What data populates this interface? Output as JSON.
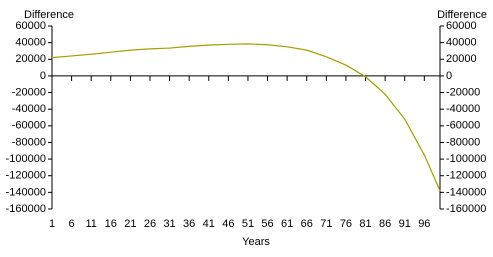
{
  "chart_data": {
    "type": "line",
    "y_label": "Difference",
    "y2_label": "Difference",
    "x_label": "Years",
    "x": [
      1,
      6,
      11,
      16,
      21,
      26,
      31,
      36,
      41,
      46,
      51,
      56,
      61,
      66,
      71,
      76,
      81,
      86,
      91,
      96,
      100
    ],
    "series": [
      {
        "color": "#a3a000",
        "values": [
          22000,
          24000,
          26000,
          28500,
          31000,
          32500,
          33500,
          35500,
          37000,
          38000,
          38500,
          37500,
          35000,
          31000,
          23000,
          13000,
          -1000,
          -22000,
          -52000,
          -95000,
          -138000
        ]
      }
    ],
    "xlim": [
      1,
      100
    ],
    "xticks": [
      1,
      6,
      11,
      16,
      21,
      26,
      31,
      36,
      41,
      46,
      51,
      56,
      61,
      66,
      71,
      76,
      81,
      86,
      91,
      96
    ],
    "ylim": [
      -160000,
      60000
    ],
    "yticks": [
      60000,
      40000,
      20000,
      0,
      -20000,
      -40000,
      -60000,
      -80000,
      -100000,
      -120000,
      -140000,
      -160000
    ],
    "y2lim": [
      -160000,
      60000
    ],
    "y2ticks": [
      60000,
      40000,
      20000,
      0,
      -20000,
      -40000,
      -60000,
      -80000,
      -100000,
      -120000,
      -140000,
      -160000
    ]
  }
}
